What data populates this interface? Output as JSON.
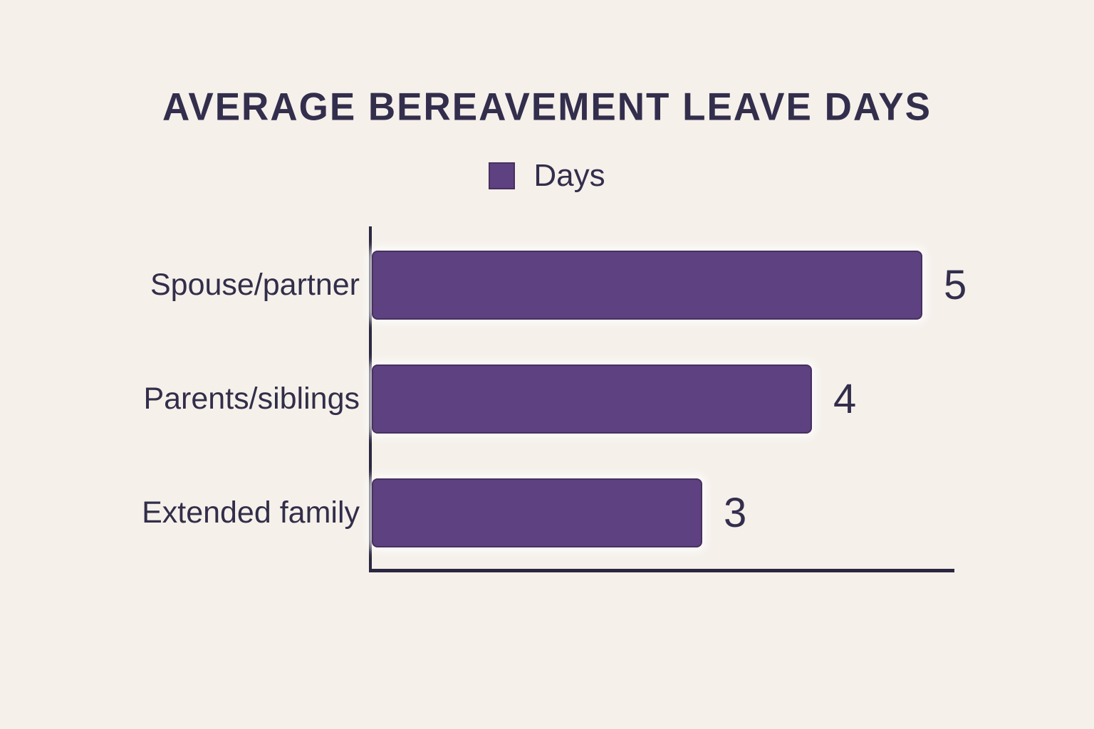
{
  "page": {
    "background_color": "#f5f0ea",
    "text_color": "#332e4c",
    "accent_color": "#5e4180",
    "axis_color": "#2b2740"
  },
  "chart_data": {
    "type": "bar",
    "orientation": "horizontal",
    "title": "AVERAGE BEREAVEMENT LEAVE DAYS",
    "legend": {
      "label": "Days",
      "position": "top",
      "swatch_color": "#5e4180"
    },
    "categories": [
      "Spouse/partner",
      "Parents/siblings",
      "Extended family"
    ],
    "values": [
      5,
      4,
      3
    ],
    "xlabel": "",
    "ylabel": "",
    "xlim": [
      0,
      5.3
    ],
    "grid": false,
    "bar_color": "#5e4180",
    "value_labels_shown": true
  }
}
